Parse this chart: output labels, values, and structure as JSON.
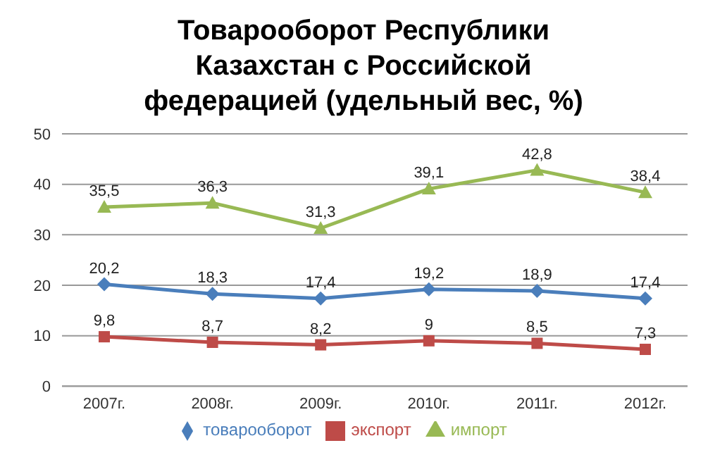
{
  "chart_data": {
    "type": "line",
    "title": "Товарооборот Республики Казахстан с Российской федерацией (удельный вес, %)",
    "categories": [
      "2007г.",
      "2008г.",
      "2009г.",
      "2010г.",
      "2011г.",
      "2012г."
    ],
    "series": [
      {
        "name": "товарооборот",
        "color": "#4a7ebb",
        "marker": "diamond",
        "values": [
          20.2,
          18.3,
          17.4,
          19.2,
          18.9,
          17.4
        ],
        "value_labels": [
          "20,2",
          "18,3",
          "17,4",
          "19,2",
          "18,9",
          "17,4"
        ]
      },
      {
        "name": "экспорт",
        "color": "#be4b48",
        "marker": "square",
        "values": [
          9.8,
          8.7,
          8.2,
          9,
          8.5,
          7.3
        ],
        "value_labels": [
          "9,8",
          "8,7",
          "8,2",
          "9",
          "8,5",
          "7,3"
        ]
      },
      {
        "name": "импорт",
        "color": "#98b954",
        "marker": "triangle",
        "values": [
          35.5,
          36.3,
          31.3,
          39.1,
          42.8,
          38.4
        ],
        "value_labels": [
          "35,5",
          "36,3",
          "31,3",
          "39,1",
          "42,8",
          "38,4"
        ]
      }
    ],
    "ylim": [
      0,
      50
    ],
    "yticks": [
      0,
      10,
      20,
      30,
      40,
      50
    ],
    "grid": "y",
    "legend": "bottom"
  }
}
